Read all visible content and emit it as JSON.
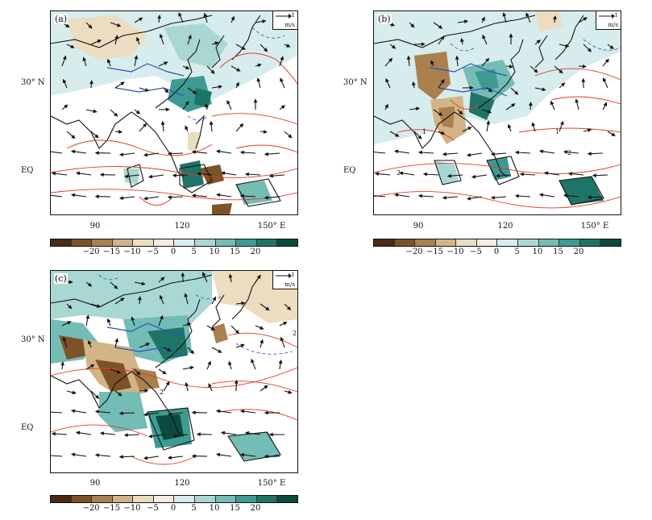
{
  "panels": [
    {
      "label": "(a)"
    },
    {
      "label": "(b)"
    },
    {
      "label": "(c)"
    }
  ],
  "reference_vector": {
    "value": "1",
    "unit": "m/s"
  },
  "lat_labels": [
    "30° N",
    "EQ"
  ],
  "lon_labels": [
    "90",
    "120",
    "150° E"
  ],
  "colorbar": {
    "ticks": [
      "−20",
      "−15",
      "−10",
      "−5",
      "0",
      "5",
      "10",
      "15",
      "20"
    ],
    "colors": [
      "#4a2a12",
      "#7d5228",
      "#a9804e",
      "#d2b487",
      "#ecdcc0",
      "#f5ecdd",
      "#d7ecec",
      "#a9d8d4",
      "#74bcb6",
      "#3d9b93",
      "#1f7468",
      "#0d4a3e"
    ]
  },
  "contour_labels": [
    "1",
    "2",
    "1",
    "2",
    "2",
    "2"
  ],
  "colors": {
    "contour_positive": "#e03a2a",
    "contour_negative": "#3a5fb8",
    "vector": "#111111"
  }
}
